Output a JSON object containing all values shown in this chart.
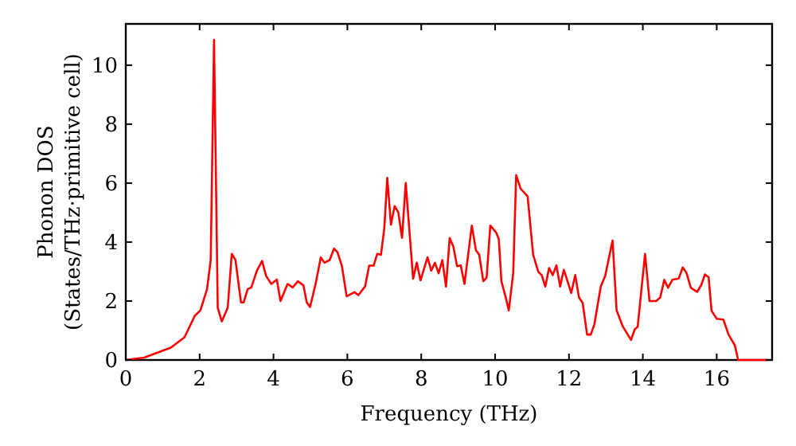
{
  "chart_data": {
    "type": "line",
    "xlabel": "Frequency (THz)",
    "ylabel": "Phonon DOS\n(States/THz·primitive cell)",
    "xlim": [
      0,
      17.5
    ],
    "ylim": [
      0,
      11.4
    ],
    "xticks": [
      0,
      2,
      4,
      6,
      8,
      10,
      12,
      14,
      16
    ],
    "yticks": [
      0,
      2,
      4,
      6,
      8,
      10
    ],
    "grid": false,
    "marker": "none",
    "line_style": "solid",
    "series": [
      {
        "color": "#ff0000",
        "x": [
          0,
          0.5,
          1.22,
          1.59,
          1.87,
          2.02,
          2.2,
          2.3,
          2.39,
          2.49,
          2.6,
          2.76,
          2.87,
          2.97,
          3.12,
          3.19,
          3.3,
          3.4,
          3.55,
          3.69,
          3.8,
          3.94,
          4.09,
          4.19,
          4.38,
          4.52,
          4.66,
          4.81,
          4.9,
          4.99,
          5.14,
          5.28,
          5.38,
          5.52,
          5.64,
          5.73,
          5.85,
          5.98,
          6.19,
          6.3,
          6.48,
          6.59,
          6.71,
          6.81,
          6.91,
          7.0,
          7.08,
          7.18,
          7.28,
          7.38,
          7.48,
          7.58,
          7.78,
          7.88,
          7.98,
          8.17,
          8.27,
          8.37,
          8.47,
          8.57,
          8.67,
          8.77,
          8.87,
          8.97,
          9.07,
          9.17,
          9.37,
          9.48,
          9.57,
          9.68,
          9.77,
          9.87,
          10.03,
          10.1,
          10.17,
          10.28,
          10.37,
          10.49,
          10.57,
          10.69,
          10.88,
          11.03,
          11.17,
          11.26,
          11.36,
          11.46,
          11.56,
          11.66,
          11.76,
          11.86,
          11.96,
          12.06,
          12.17,
          12.27,
          12.37,
          12.49,
          12.59,
          12.69,
          12.86,
          12.98,
          13.18,
          13.29,
          13.46,
          13.68,
          13.78,
          13.86,
          14.06,
          14.18,
          14.36,
          14.47,
          14.58,
          14.68,
          14.8,
          14.97,
          15.08,
          15.18,
          15.3,
          15.47,
          15.58,
          15.68,
          15.78,
          15.86,
          16.0,
          16.18,
          16.32,
          16.49,
          16.58,
          17.4
        ],
        "values": [
          0,
          0.08,
          0.42,
          0.77,
          1.5,
          1.68,
          2.4,
          3.39,
          10.86,
          1.77,
          1.31,
          1.77,
          3.6,
          3.39,
          1.95,
          1.95,
          2.4,
          2.46,
          3.03,
          3.36,
          2.85,
          2.58,
          2.73,
          2.0,
          2.58,
          2.46,
          2.67,
          2.53,
          1.95,
          1.8,
          2.58,
          3.48,
          3.3,
          3.39,
          3.78,
          3.66,
          3.2,
          2.16,
          2.3,
          2.2,
          2.5,
          3.2,
          3.2,
          3.6,
          3.57,
          4.47,
          6.18,
          4.59,
          5.22,
          5.0,
          4.14,
          6.0,
          2.76,
          3.3,
          2.7,
          3.48,
          3.03,
          3.3,
          2.94,
          3.39,
          2.49,
          4.14,
          3.84,
          3.18,
          3.21,
          2.58,
          4.56,
          3.72,
          3.57,
          2.67,
          2.79,
          4.56,
          4.32,
          4.1,
          2.67,
          2.16,
          1.68,
          2.94,
          6.27,
          5.81,
          5.55,
          3.57,
          2.99,
          2.88,
          2.49,
          3.12,
          2.88,
          3.21,
          2.49,
          3.06,
          2.67,
          2.27,
          2.88,
          2.12,
          1.94,
          0.86,
          0.86,
          1.22,
          2.49,
          2.85,
          4.05,
          1.68,
          1.13,
          0.68,
          1.04,
          1.13,
          3.6,
          2.0,
          2.0,
          2.12,
          2.72,
          2.45,
          2.72,
          2.76,
          3.14,
          2.96,
          2.45,
          2.31,
          2.54,
          2.9,
          2.81,
          1.67,
          1.4,
          1.37,
          0.86,
          0.5,
          0,
          0
        ]
      }
    ]
  }
}
